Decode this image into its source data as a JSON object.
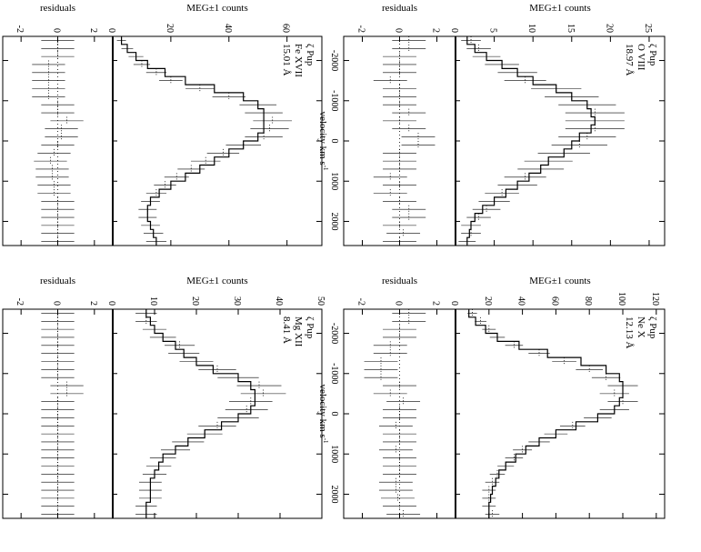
{
  "figure": {
    "rotation": "rotated 90 degrees clockwise (landscape page)",
    "foreground": "#000000",
    "background": "#ffffff"
  },
  "chart_data": [
    {
      "type": "line",
      "position": "bottom-left",
      "label_lines": [
        "ζ Pup",
        "O VIII",
        "18.97 Å"
      ],
      "xlabel": "velocity  km s",
      "xlabel_sup": "-1",
      "ylabel": "MEG±1 counts",
      "residual_ylabel": "residuals",
      "xlim": [
        -2600,
        2600
      ],
      "ylim": [
        0,
        27
      ],
      "residual_ylim": [
        -3,
        3
      ],
      "xticks": [
        -2000,
        -1000,
        0,
        1000,
        2000
      ],
      "yticks": [
        0,
        5,
        10,
        15,
        20,
        25
      ],
      "residual_yticks": [
        -2,
        0,
        2
      ],
      "x": [
        -2500,
        -2300,
        -2100,
        -1900,
        -1700,
        -1500,
        -1300,
        -1100,
        -900,
        -700,
        -500,
        -300,
        -100,
        100,
        300,
        500,
        700,
        900,
        1100,
        1300,
        1500,
        1700,
        1900,
        2100,
        2300,
        2500
      ],
      "counts": [
        2,
        3,
        4,
        6,
        8,
        9,
        13,
        15,
        17,
        18,
        18,
        18,
        17,
        16,
        14,
        12,
        11,
        9,
        8,
        6,
        5,
        4,
        3,
        2,
        2,
        1.5
      ],
      "model": [
        1.5,
        2.5,
        4,
        6,
        8,
        10,
        13,
        15,
        17,
        17.5,
        18,
        17.5,
        16,
        15,
        14,
        12,
        11,
        9.5,
        8,
        6.5,
        5,
        3.5,
        2.5,
        2,
        1.8,
        1.5
      ],
      "residuals": [
        0.5,
        0.5,
        0,
        0,
        0,
        -0.5,
        0,
        0,
        0,
        0.5,
        0,
        0.5,
        1,
        1,
        0,
        0,
        0,
        -0.5,
        0,
        -0.5,
        0,
        0.5,
        0.5,
        0,
        0.2,
        0
      ]
    },
    {
      "type": "line",
      "position": "top-left",
      "label_lines": [
        "ζ Pup",
        "Ne X",
        "12.13 Å"
      ],
      "xlabel": "velocity  km s",
      "xlabel_sup": "-1",
      "ylabel": "MEG±1 counts",
      "residual_ylabel": "residuals",
      "xlim": [
        -2600,
        2600
      ],
      "ylim": [
        0,
        125
      ],
      "residual_ylim": [
        -3,
        3
      ],
      "xticks": [
        -2000,
        -1000,
        0,
        1000,
        2000
      ],
      "yticks": [
        0,
        20,
        40,
        60,
        80,
        100,
        120
      ],
      "residual_yticks": [
        -2,
        0,
        2
      ],
      "x": [
        -2500,
        -2300,
        -2100,
        -1900,
        -1700,
        -1500,
        -1300,
        -1100,
        -900,
        -700,
        -500,
        -300,
        -100,
        100,
        300,
        500,
        700,
        900,
        1100,
        1300,
        1500,
        1700,
        1900,
        2100,
        2300,
        2500
      ],
      "counts": [
        10,
        15,
        20,
        25,
        35,
        50,
        65,
        80,
        90,
        100,
        95,
        100,
        95,
        85,
        70,
        60,
        50,
        40,
        35,
        30,
        25,
        22,
        20,
        20,
        20,
        22
      ],
      "model": [
        8,
        12,
        18,
        25,
        38,
        55,
        75,
        90,
        98,
        100,
        100,
        98,
        95,
        85,
        72,
        60,
        50,
        42,
        36,
        30,
        26,
        24,
        22,
        21,
        20,
        20
      ],
      "residuals": [
        0.5,
        0.5,
        0,
        0,
        -0.5,
        -0.5,
        -1,
        -1,
        -1,
        0,
        -0.5,
        0.2,
        0,
        0,
        -0.2,
        0,
        0,
        -0.2,
        0,
        0,
        0,
        -0.2,
        -0.2,
        -0.1,
        0,
        0.2
      ]
    },
    {
      "type": "line",
      "position": "bottom-right",
      "label_lines": [
        "ζ Pup",
        "Fe XVII",
        "15.01 Å"
      ],
      "xlabel": "velocity  km s",
      "xlabel_sup": "-1",
      "ylabel": "MEG±1 counts",
      "residual_ylabel": "residuals",
      "xlim": [
        -2600,
        2600
      ],
      "ylim": [
        0,
        72
      ],
      "residual_ylim": [
        -3,
        3
      ],
      "xticks": [
        -2000,
        -1000,
        0,
        1000,
        2000
      ],
      "yticks": [
        0,
        20,
        40,
        60
      ],
      "residual_yticks": [
        -2,
        0,
        2
      ],
      "x": [
        -2500,
        -2300,
        -2100,
        -1900,
        -1700,
        -1500,
        -1300,
        -1100,
        -900,
        -700,
        -500,
        -300,
        -100,
        100,
        300,
        500,
        700,
        900,
        1100,
        1300,
        1500,
        1700,
        1900,
        2100,
        2300,
        2500
      ],
      "counts": [
        3,
        5,
        8,
        10,
        15,
        20,
        30,
        40,
        50,
        52,
        55,
        54,
        52,
        45,
        38,
        32,
        27,
        22,
        18,
        15,
        13,
        12,
        12,
        13,
        14,
        15
      ],
      "model": [
        3,
        5,
        8,
        12,
        18,
        25,
        35,
        45,
        50,
        52,
        52,
        52,
        50,
        45,
        40,
        35,
        30,
        25,
        20,
        16,
        13,
        12,
        12,
        13,
        14,
        15
      ],
      "residuals": [
        0,
        0,
        0,
        -0.5,
        -0.5,
        -0.5,
        -0.5,
        -0.5,
        0,
        0,
        0.5,
        0.2,
        0.2,
        0,
        -0.2,
        -0.4,
        -0.3,
        -0.3,
        -0.2,
        -0.2,
        0,
        0,
        0,
        0,
        0,
        0
      ]
    },
    {
      "type": "line",
      "position": "top-right",
      "label_lines": [
        "ζ Pup",
        "Mg XII",
        "8.41 Å"
      ],
      "xlabel": "velocity  km s",
      "xlabel_sup": "-1",
      "ylabel": "MEG±1 counts",
      "residual_ylabel": "residuals",
      "xlim": [
        -2600,
        2600
      ],
      "ylim": [
        0,
        50
      ],
      "residual_ylim": [
        -3,
        3
      ],
      "xticks": [
        -2000,
        -1000,
        0,
        1000,
        2000
      ],
      "yticks": [
        0,
        10,
        20,
        30,
        40,
        50
      ],
      "residual_yticks": [
        -2,
        0,
        2
      ],
      "x": [
        -2500,
        -2300,
        -2100,
        -1900,
        -1700,
        -1500,
        -1300,
        -1100,
        -900,
        -700,
        -500,
        -300,
        -100,
        100,
        300,
        500,
        700,
        900,
        1100,
        1300,
        1500,
        1700,
        1900,
        2100,
        2300,
        2500
      ],
      "counts": [
        8,
        8,
        10,
        12,
        16,
        17,
        20,
        25,
        30,
        35,
        36,
        33,
        32,
        30,
        25,
        22,
        18,
        15,
        12,
        11,
        10,
        9,
        9,
        9,
        8,
        8
      ],
      "model": [
        8,
        9,
        10,
        12,
        15,
        17,
        20,
        24,
        30,
        33,
        34,
        34,
        33,
        30,
        26,
        22,
        18,
        15,
        12,
        11,
        10,
        9,
        9,
        9,
        8,
        8
      ],
      "residuals": [
        0,
        0,
        0,
        0,
        0,
        0,
        0,
        0,
        0,
        0.5,
        0.5,
        0,
        0,
        0,
        0,
        0,
        0,
        0,
        0,
        0,
        0,
        0,
        0,
        0,
        0,
        0
      ]
    }
  ]
}
